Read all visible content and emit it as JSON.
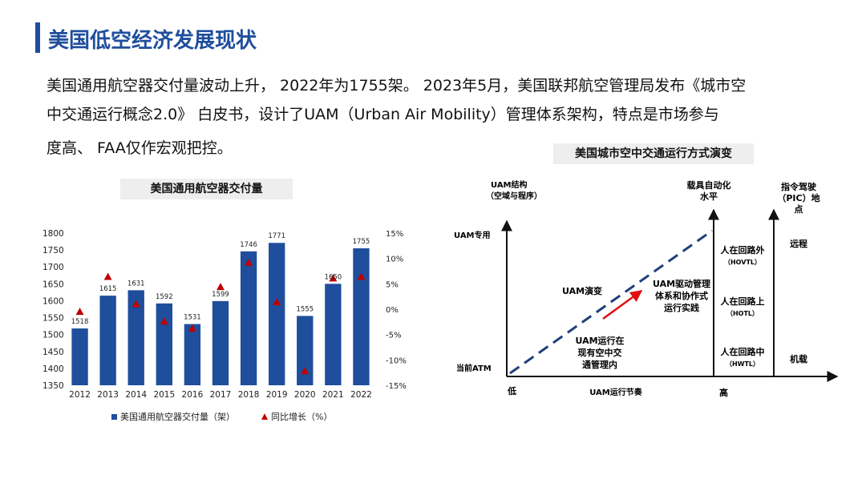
{
  "page": {
    "title": "美国低空经济发展现状",
    "intro": [
      "美国通用航空器交付量波动上升，   2022年为1755架。 2023年5月，美国联邦航空管理局发布《城市空",
      "中交通运行概念2.0》 白皮书，设计了UAM（Urban Air Mobility）管理体系架构，特点是市场参与",
      "度高、 FAA仅作宏观把控。"
    ]
  },
  "chart_data": [
    {
      "type": "bar",
      "title": "美国通用航空器交付量",
      "categories": [
        "2012",
        "2013",
        "2014",
        "2015",
        "2016",
        "2017",
        "2018",
        "2019",
        "2020",
        "2021",
        "2022"
      ],
      "series": [
        {
          "name": "美国通用航空器交付量（架）",
          "type": "bar",
          "color": "#1f4e9c",
          "values": [
            1518,
            1615,
            1631,
            1592,
            1531,
            1599,
            1746,
            1771,
            1555,
            1650,
            1755
          ]
        },
        {
          "name": "同比增长（%）",
          "type": "scatter",
          "marker": "triangle",
          "color": "#c00000",
          "axis": "right",
          "values": [
            -0.5,
            6.4,
            1.0,
            -2.4,
            -3.8,
            4.4,
            9.2,
            1.4,
            -12.2,
            6.1,
            6.4
          ]
        }
      ],
      "ylim": [
        1350,
        1800
      ],
      "yticks": [
        "1800",
        "1750",
        "1700",
        "1650",
        "1600",
        "1550",
        "1500",
        "1450",
        "1400",
        "1350"
      ],
      "y2lim": [
        -15,
        15
      ],
      "y2ticks": [
        "15%",
        "10%",
        "5%",
        "0%",
        "-5%",
        "-10%",
        "-15%"
      ],
      "grid": false,
      "legend": "bottom"
    },
    {
      "type": "diagram",
      "title": "美国城市空中交通运行方式演变",
      "labels": {
        "uam_structure": "UAM结构",
        "uam_structure_sub": "（空域与程序）",
        "automation_1": "载具自动化",
        "automation_2": "水平",
        "pic_1": "指令驾驶",
        "pic_2": "（PIC）地",
        "pic_3": "点",
        "uam_dedicated": "UAM专用",
        "current_atm": "当前ATM",
        "low": "低",
        "high": "高",
        "x_label": "UAM运行节奏",
        "uam_evolution": "UAM演变",
        "driven_1": "UAM驱动管理",
        "driven_2": "体系和协作式",
        "driven_3": "运行实践",
        "current_1": "UAM运行在",
        "current_2": "现有空中交",
        "current_3": "通管理内",
        "hovtl_1": "人在回路外",
        "hovtl_2": "（HOVTL）",
        "hotl_1": "人在回路上",
        "hotl_2": "（HOTL）",
        "hwtl_1": "人在回路中",
        "hwtl_2": "（HWTL）",
        "remote": "远程",
        "onboard": "机载"
      }
    }
  ]
}
